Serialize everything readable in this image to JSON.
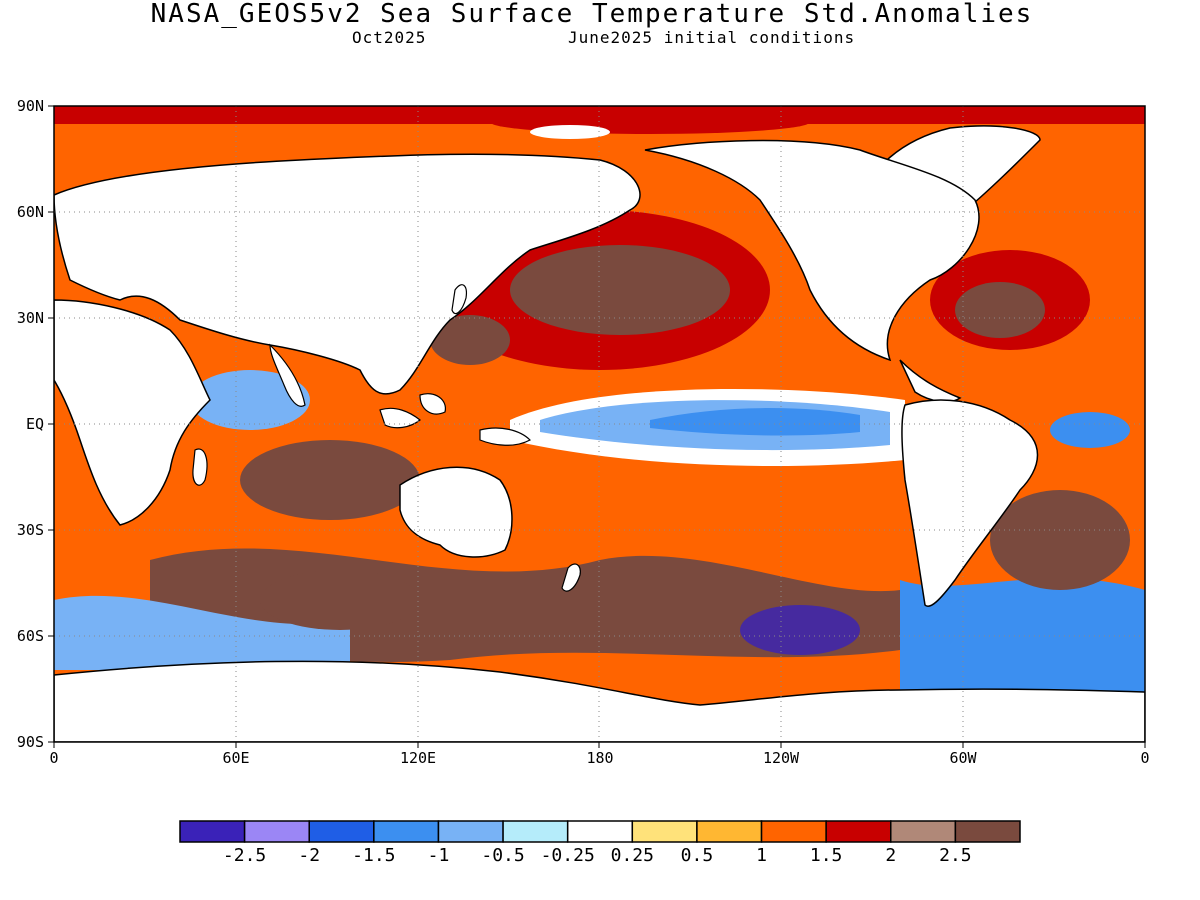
{
  "title": "NASA_GEOS5v2 Sea Surface Temperature Std.Anomalies",
  "subtitle_left": "Oct2025",
  "subtitle_right": "June2025 initial conditions",
  "lat_labels": [
    "90N",
    "60N",
    "30N",
    "EQ",
    "30S",
    "60S",
    "90S"
  ],
  "lon_labels": [
    "0",
    "60E",
    "120E",
    "180",
    "120W",
    "60W",
    "0"
  ],
  "colorbar": {
    "colors": [
      "#3a22b8",
      "#9b86f5",
      "#1f5ee6",
      "#3c8ff0",
      "#78b2f5",
      "#b5ecfa",
      "#ffffff",
      "#ffe27a",
      "#ffb732",
      "#ff6400",
      "#c80000",
      "#b08878",
      "#7a4a3e"
    ],
    "labels": [
      "-2.5",
      "-2",
      "-1.5",
      "-1",
      "-0.5",
      "-0.25",
      "0.25",
      "0.5",
      "1",
      "1.5",
      "2",
      "2.5"
    ]
  },
  "colors": {
    "land": "#ffffff",
    "coast": "#000000",
    "grid": "#8a8a8a"
  }
}
